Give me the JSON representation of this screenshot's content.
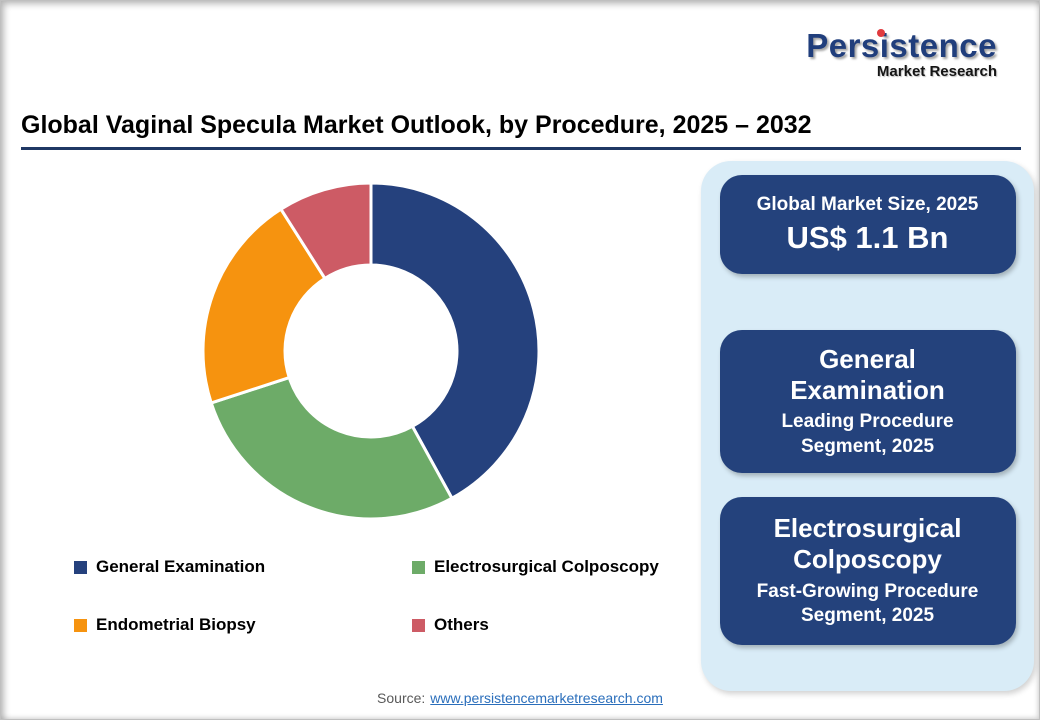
{
  "logo": {
    "title": "Persistence",
    "subtitle": "Market Research",
    "navy": "#203E7C",
    "dot_red": "#E03A3E"
  },
  "header": {
    "title": "Global Vaginal Specula Market Outlook, by Procedure, 2025 – 2032"
  },
  "chart_data": {
    "type": "pie",
    "donut": true,
    "title": "Global Vaginal Specula Market Outlook, by Procedure, 2025 – 2032",
    "categories": [
      "General Examination",
      "Electrosurgical Colposcopy",
      "Endometrial Biopsy",
      "Others"
    ],
    "values": [
      42,
      28,
      21,
      9
    ],
    "values_estimated": true,
    "colors": [
      "#25417D",
      "#6DAB68",
      "#F6930F",
      "#CD5B65"
    ],
    "start_angle_deg": 0,
    "direction": "clockwise",
    "inner_radius_ratio": 0.51,
    "legend_position": "bottom"
  },
  "sidebar": {
    "panel_color": "#D9ECF7",
    "card_color": "#24427C",
    "cards": [
      {
        "title": "Global Market Size, 2025",
        "value": "US$ 1.1 Bn"
      },
      {
        "title": "General Examination",
        "subtitle": "Leading Procedure Segment, 2025"
      },
      {
        "title": "Electrosurgical Colposcopy",
        "subtitle": "Fast-Growing Procedure Segment, 2025"
      }
    ]
  },
  "footer": {
    "source_label": "Source:",
    "source_link_text": "www.persistencemarketresearch.com",
    "link_color": "#2A6EBB"
  }
}
